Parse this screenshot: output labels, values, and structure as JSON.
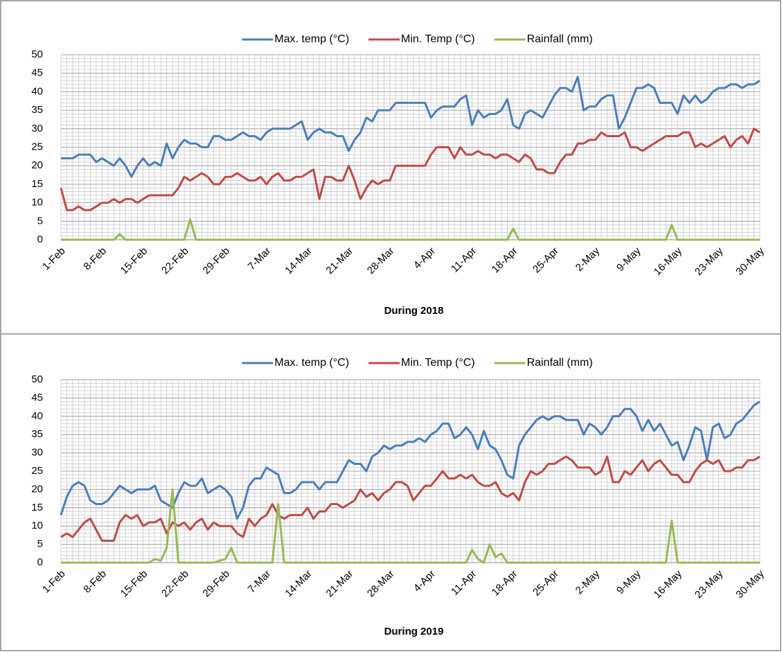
{
  "chart_data": [
    {
      "type": "line",
      "xlabel": "During 2018",
      "legend": "top",
      "grid": true,
      "categories": [
        "1-Feb",
        null,
        null,
        null,
        null,
        null,
        null,
        "8-Feb",
        null,
        null,
        null,
        null,
        null,
        null,
        "15-Feb",
        null,
        null,
        null,
        null,
        null,
        null,
        "22-Feb",
        null,
        null,
        null,
        null,
        null,
        null,
        "29-Feb",
        null,
        null,
        null,
        null,
        null,
        null,
        "7-Mar",
        null,
        null,
        null,
        null,
        null,
        null,
        "14-Mar",
        null,
        null,
        null,
        null,
        null,
        null,
        "21-Mar",
        null,
        null,
        null,
        null,
        null,
        null,
        "28-Mar",
        null,
        null,
        null,
        null,
        null,
        null,
        "4-Apr",
        null,
        null,
        null,
        null,
        null,
        null,
        "11-Apr",
        null,
        null,
        null,
        null,
        null,
        null,
        "18-Apr",
        null,
        null,
        null,
        null,
        null,
        null,
        "25-Apr",
        null,
        null,
        null,
        null,
        null,
        null,
        "2-May",
        null,
        null,
        null,
        null,
        null,
        null,
        "9-May",
        null,
        null,
        null,
        null,
        null,
        null,
        "16-May",
        null,
        null,
        null,
        null,
        null,
        null,
        "23-May",
        null,
        null,
        null,
        null,
        null,
        null,
        "30-May"
      ],
      "ylim": [
        0,
        50
      ],
      "yticks": [
        0,
        5,
        10,
        15,
        20,
        25,
        30,
        35,
        40,
        45,
        50
      ],
      "series": [
        {
          "name": "Max. temp (°C)",
          "color": "#4a7ebb",
          "values": [
            22,
            22,
            22,
            23,
            23,
            23,
            21,
            22,
            21,
            20,
            22,
            20,
            17,
            20,
            22,
            20,
            21,
            20,
            26,
            22,
            25,
            27,
            26,
            26,
            25,
            25,
            28,
            28,
            27,
            27,
            28,
            29,
            28,
            28,
            27,
            29,
            30,
            30,
            30,
            30,
            31,
            32,
            27,
            29,
            30,
            29,
            29,
            28,
            28,
            24,
            27,
            29,
            33,
            32,
            35,
            35,
            35,
            37,
            37,
            37,
            37,
            37,
            37,
            33,
            35,
            36,
            36,
            36,
            38,
            39,
            31,
            35,
            33,
            34,
            34,
            35,
            38,
            31,
            30,
            34,
            35,
            34,
            33,
            36,
            39,
            41,
            41,
            40,
            44,
            35,
            36,
            36,
            38,
            39,
            39,
            30,
            33,
            37,
            41,
            41,
            42,
            41,
            37,
            37,
            37,
            34,
            39,
            37,
            39,
            37,
            38,
            40,
            41,
            41,
            42,
            42,
            41,
            42,
            42,
            43
          ]
        },
        {
          "name": "Min. Temp (°C)",
          "color": "#be4b48",
          "values": [
            14,
            8,
            8,
            9,
            8,
            8,
            9,
            10,
            10,
            11,
            10,
            11,
            11,
            10,
            11,
            12,
            12,
            12,
            12,
            12,
            14,
            17,
            16,
            17,
            18,
            17,
            15,
            15,
            17,
            17,
            18,
            17,
            16,
            16,
            17,
            15,
            17,
            18,
            16,
            16,
            17,
            17,
            18,
            19,
            11,
            17,
            17,
            16,
            16,
            20,
            16,
            11,
            14,
            16,
            15,
            16,
            16,
            20,
            20,
            20,
            20,
            20,
            20,
            23,
            25,
            25,
            25,
            22,
            25,
            23,
            23,
            24,
            23,
            23,
            22,
            23,
            23,
            22,
            21,
            23,
            22,
            19,
            19,
            18,
            18,
            21,
            23,
            23,
            26,
            26,
            27,
            27,
            29,
            28,
            28,
            28,
            29,
            25,
            25,
            24,
            25,
            26,
            27,
            28,
            28,
            28,
            29,
            29,
            25,
            26,
            25,
            26,
            27,
            28,
            25,
            27,
            28,
            26,
            30,
            29
          ]
        },
        {
          "name": "Rainfall (mm)",
          "color": "#98b954",
          "values": [
            0,
            0,
            0,
            0,
            0,
            0,
            0,
            0,
            0,
            0,
            1.5,
            0,
            0,
            0,
            0,
            0,
            0,
            0,
            0,
            0,
            0,
            0,
            5.5,
            0,
            0,
            0,
            0,
            0,
            0,
            0,
            0,
            0,
            0,
            0,
            0,
            0,
            0,
            0,
            0,
            0,
            0,
            0,
            0,
            0,
            0,
            0,
            0,
            0,
            0,
            0,
            0,
            0,
            0,
            0,
            0,
            0,
            0,
            0,
            0,
            0,
            0,
            0,
            0,
            0,
            0,
            0,
            0,
            0,
            0,
            0,
            0,
            0,
            0,
            0,
            0,
            0,
            0,
            3,
            0,
            0,
            0,
            0,
            0,
            0,
            0,
            0,
            0,
            0,
            0,
            0,
            0,
            0,
            0,
            0,
            0,
            0,
            0,
            0,
            0,
            0,
            0,
            0,
            0,
            0,
            4,
            0,
            0,
            0,
            0,
            0,
            0,
            0,
            0,
            0,
            0,
            0,
            0,
            0,
            0,
            0
          ]
        }
      ]
    },
    {
      "type": "line",
      "xlabel": "During 2019",
      "legend": "top",
      "grid": true,
      "categories": [
        "1-Feb",
        null,
        null,
        null,
        null,
        null,
        null,
        "8-Feb",
        null,
        null,
        null,
        null,
        null,
        null,
        "15-Feb",
        null,
        null,
        null,
        null,
        null,
        null,
        "22-Feb",
        null,
        null,
        null,
        null,
        null,
        null,
        "29-Feb",
        null,
        null,
        null,
        null,
        null,
        null,
        "7-Mar",
        null,
        null,
        null,
        null,
        null,
        null,
        "14-Mar",
        null,
        null,
        null,
        null,
        null,
        null,
        "21-Mar",
        null,
        null,
        null,
        null,
        null,
        null,
        "28-Mar",
        null,
        null,
        null,
        null,
        null,
        null,
        "4-Apr",
        null,
        null,
        null,
        null,
        null,
        null,
        "11-Apr",
        null,
        null,
        null,
        null,
        null,
        null,
        "18-Apr",
        null,
        null,
        null,
        null,
        null,
        null,
        "25-Apr",
        null,
        null,
        null,
        null,
        null,
        null,
        "2-May",
        null,
        null,
        null,
        null,
        null,
        null,
        "9-May",
        null,
        null,
        null,
        null,
        null,
        null,
        "16-May",
        null,
        null,
        null,
        null,
        null,
        null,
        "23-May",
        null,
        null,
        null,
        null,
        null,
        null,
        "30-May"
      ],
      "ylim": [
        0,
        50
      ],
      "yticks": [
        0,
        5,
        10,
        15,
        20,
        25,
        30,
        35,
        40,
        45,
        50
      ],
      "series": [
        {
          "name": "Max. temp (°C)",
          "color": "#4a7ebb",
          "values": [
            13,
            18,
            21,
            22,
            21,
            17,
            16,
            16,
            17,
            19,
            21,
            20,
            19,
            20,
            20,
            20,
            21,
            17,
            16,
            15,
            19,
            22,
            21,
            21,
            23,
            19,
            20,
            21,
            20,
            18,
            12,
            15,
            21,
            23,
            23,
            26,
            25,
            24,
            19,
            19,
            20,
            22,
            22,
            22,
            20,
            22,
            22,
            22,
            25,
            28,
            27,
            27,
            25,
            29,
            30,
            32,
            31,
            32,
            32,
            33,
            33,
            34,
            33,
            35,
            36,
            38,
            38,
            34,
            35,
            37,
            35,
            31,
            36,
            32,
            31,
            28,
            24,
            23,
            32,
            35,
            37,
            39,
            40,
            39,
            40,
            40,
            39,
            39,
            39,
            35,
            38,
            37,
            35,
            37,
            40,
            40,
            42,
            42,
            40,
            36,
            39,
            36,
            38,
            35,
            32,
            33,
            28,
            32,
            37,
            36,
            28,
            37,
            38,
            34,
            35,
            38,
            39,
            41,
            43,
            44
          ]
        },
        {
          "name": "Min. Temp (°C)",
          "color": "#be4b48",
          "values": [
            7,
            8,
            7,
            9,
            11,
            12,
            9,
            6,
            6,
            6,
            11,
            13,
            12,
            13,
            10,
            11,
            11,
            12,
            8,
            11,
            10,
            11,
            9,
            11,
            12,
            9,
            11,
            10,
            10,
            10,
            8,
            7,
            12,
            10,
            12,
            13,
            16,
            13,
            12,
            13,
            13,
            13,
            15,
            12,
            14,
            14,
            16,
            16,
            15,
            16,
            17,
            20,
            18,
            19,
            17,
            19,
            20,
            22,
            22,
            21,
            17,
            19,
            21,
            21,
            23,
            25,
            23,
            23,
            24,
            23,
            24,
            22,
            21,
            21,
            22,
            19,
            18,
            19,
            17,
            22,
            25,
            24,
            25,
            27,
            27,
            28,
            29,
            28,
            26,
            26,
            26,
            24,
            25,
            29,
            22,
            22,
            25,
            24,
            26,
            28,
            25,
            27,
            28,
            26,
            24,
            24,
            22,
            22,
            25,
            27,
            28,
            27,
            28,
            25,
            25,
            26,
            26,
            28,
            28,
            29
          ]
        },
        {
          "name": "Rainfall (mm)",
          "color": "#98b954",
          "values": [
            0,
            0,
            0,
            0,
            0,
            0,
            0,
            0,
            0,
            0,
            0,
            0,
            0,
            0,
            0,
            0,
            1,
            0.5,
            4,
            20,
            0,
            0,
            0,
            0,
            0,
            0,
            0,
            0.5,
            1,
            4,
            0,
            0,
            0,
            0,
            0,
            0,
            0,
            16,
            0,
            0,
            0,
            0,
            0,
            0,
            0,
            0,
            0,
            0,
            0,
            0,
            0,
            0,
            0,
            0,
            0,
            0,
            0,
            0,
            0,
            0,
            0,
            0,
            0,
            0,
            0,
            0,
            0,
            0,
            0,
            0,
            3.5,
            1,
            0,
            5,
            1.5,
            2.5,
            0,
            0,
            0,
            0,
            0,
            0,
            0,
            0,
            0,
            0,
            0,
            0,
            0,
            0,
            0,
            0,
            0,
            0,
            0,
            0,
            0,
            0,
            0,
            0,
            0,
            0,
            0,
            0,
            11.5,
            0,
            0,
            0,
            0,
            0,
            0,
            0,
            0,
            0,
            0,
            0,
            0,
            0,
            0,
            0
          ]
        }
      ]
    }
  ]
}
